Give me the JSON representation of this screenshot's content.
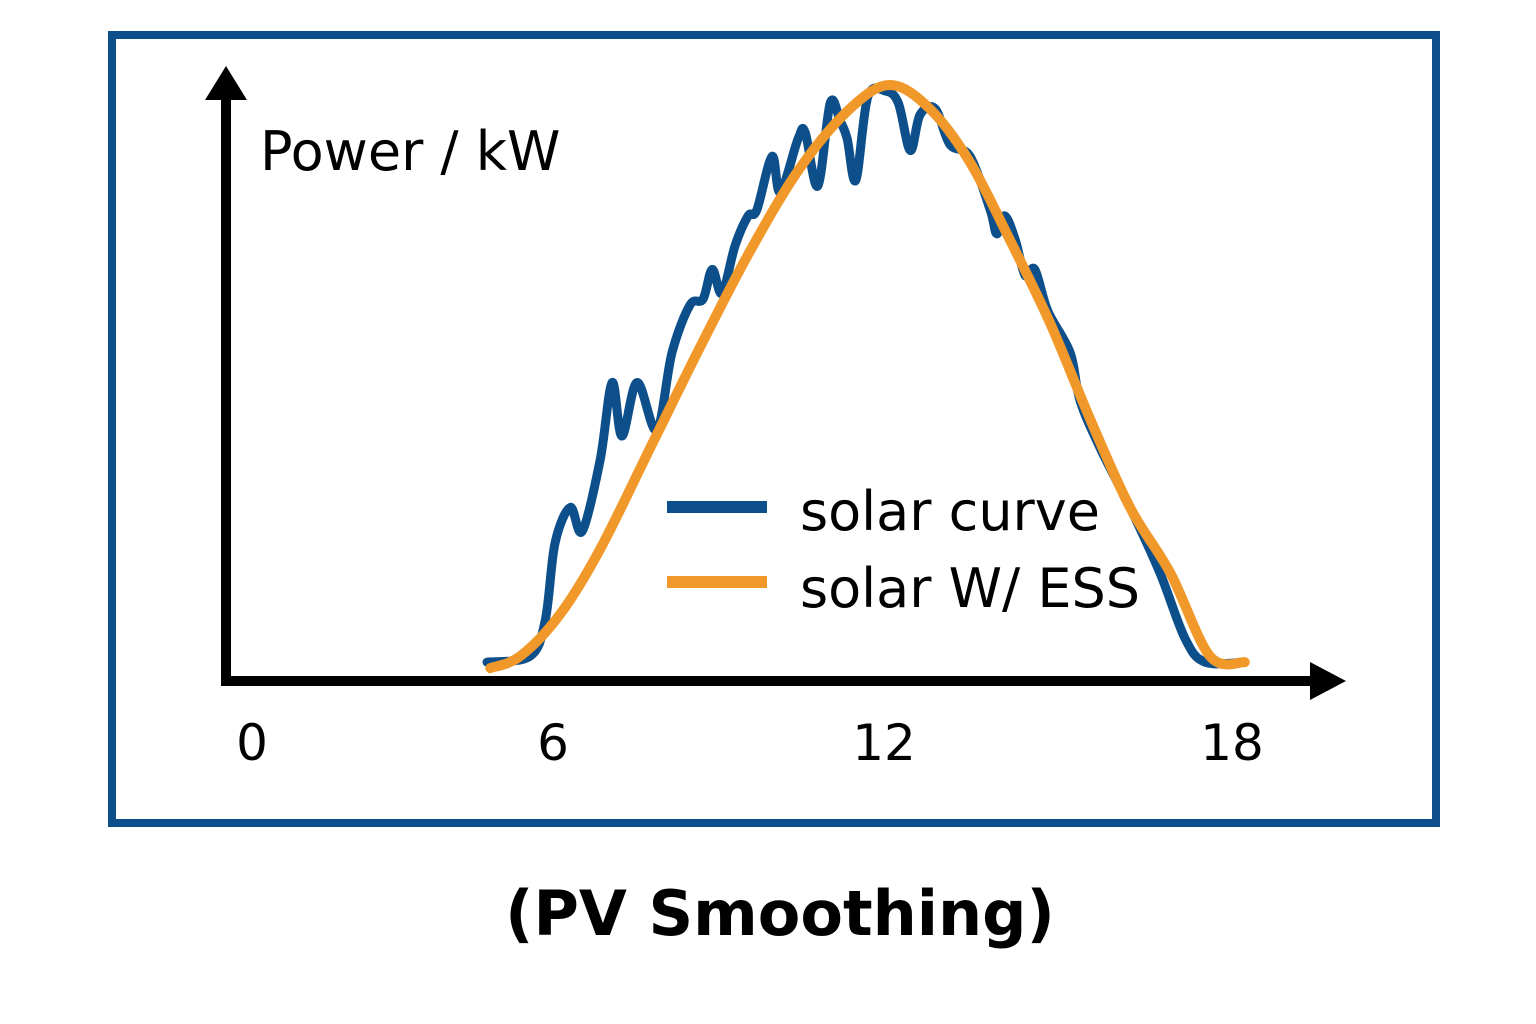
{
  "chart_data": {
    "type": "line",
    "title": "(PV Smoothing)",
    "xlabel": "",
    "ylabel": "Power / kW",
    "xlim": [
      0,
      20
    ],
    "ylim": [
      0,
      1.05
    ],
    "x_ticks": [
      0,
      6,
      12,
      18
    ],
    "x_tick_labels": [
      "0",
      "6",
      "12",
      "18"
    ],
    "grid": false,
    "legend_placement": "center-right",
    "colors": {
      "frame": "#0d4f8b",
      "solar_curve": "#0d4f8b",
      "solar_ess": "#f0992a"
    },
    "series": [
      {
        "name": "solar curve",
        "color": "#0d4f8b",
        "x": [
          4.32,
          5.11,
          5.39,
          5.57,
          5.85,
          6.07,
          6.4,
          6.62,
          6.8,
          7.08,
          7.44,
          7.72,
          8.05,
          8.29,
          8.46,
          8.64,
          8.88,
          9.12,
          9.28,
          9.56,
          9.71,
          10.04,
          10.17,
          10.4,
          10.63,
          10.81,
          10.94,
          11.1,
          11.32,
          11.64,
          11.88,
          12.1,
          12.28,
          12.56,
          12.83,
          13.2,
          13.57,
          13.69,
          13.84,
          14.03,
          14.21,
          14.39,
          14.63,
          15.04,
          15.22,
          15.59,
          16.14,
          16.69,
          17.15,
          17.52,
          18.25
        ],
        "y": [
          0.03,
          0.04,
          0.1,
          0.23,
          0.29,
          0.25,
          0.37,
          0.5,
          0.41,
          0.5,
          0.42,
          0.55,
          0.63,
          0.64,
          0.69,
          0.65,
          0.73,
          0.78,
          0.79,
          0.88,
          0.82,
          0.91,
          0.92,
          0.83,
          0.97,
          0.94,
          0.91,
          0.84,
          0.98,
          0.99,
          0.97,
          0.89,
          0.95,
          0.96,
          0.9,
          0.88,
          0.79,
          0.75,
          0.78,
          0.74,
          0.68,
          0.69,
          0.62,
          0.55,
          0.47,
          0.39,
          0.29,
          0.18,
          0.07,
          0.03,
          0.03
        ]
      },
      {
        "name": "solar W/ ESS",
        "color": "#f0992a",
        "x": [
          4.38,
          4.93,
          5.66,
          6.4,
          7.32,
          8.24,
          9.15,
          10.07,
          10.99,
          11.73,
          12.46,
          13.2,
          13.93,
          14.67,
          15.4,
          16.14,
          16.88,
          17.61,
          18.25
        ],
        "y": [
          0.02,
          0.04,
          0.11,
          0.22,
          0.39,
          0.56,
          0.72,
          0.86,
          0.96,
          1.0,
          0.96,
          0.87,
          0.74,
          0.6,
          0.44,
          0.29,
          0.18,
          0.04,
          0.03
        ]
      }
    ]
  }
}
